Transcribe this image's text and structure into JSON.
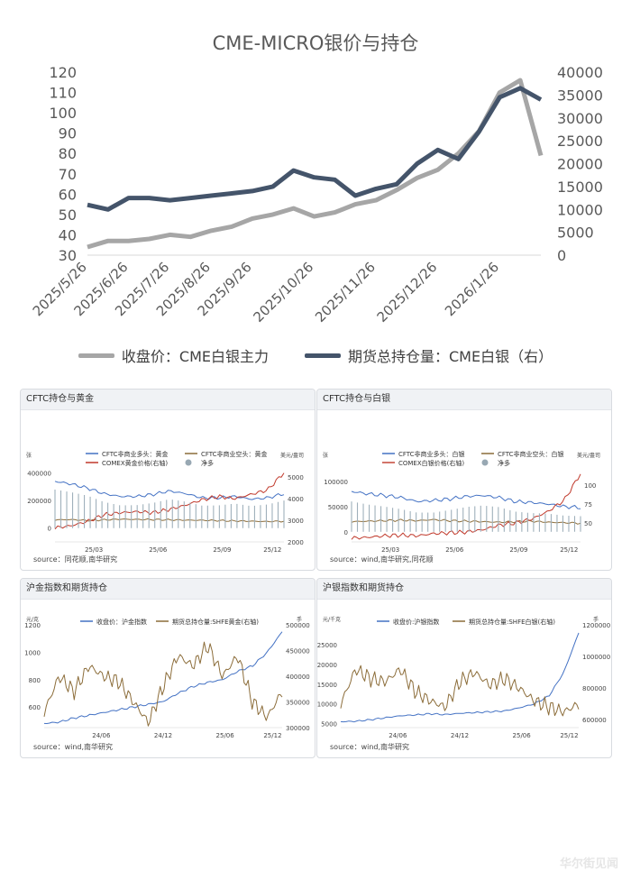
{
  "top_chart": {
    "title": "CME-MICRO银价与持仓",
    "legend": {
      "price": "收盘价：CME白银主力",
      "oi": "期货总持仓量：CME白银（右）"
    },
    "colors": {
      "price": "#a6a6a6",
      "oi": "#44546a"
    }
  },
  "panels": {
    "p1": {
      "title": "CFTC持仓与黄金",
      "source": "source：同花顺,南华研究",
      "unit_left": "张",
      "unit_right": "美元/盎司",
      "legend": {
        "long": "CFTC非商业多头：黄金",
        "short": "CFTC非商业空头：黄金",
        "price": "COMEX黄金价格(右轴)",
        "net": "净多"
      }
    },
    "p2": {
      "title": "CFTC持仓与白银",
      "source": "source：wind,南华研究,同花顺",
      "unit_left": "张",
      "unit_right": "美元/盎司",
      "legend": {
        "long": "CFTC非商业多头：白银",
        "short": "CFTC非商业空头：白银",
        "price": "COMEX白银价格(右轴)",
        "net": "净多"
      }
    },
    "p3": {
      "title": "沪金指数和期货持仓",
      "source": "source：wind,南华研究",
      "unit_left": "元/克",
      "unit_right": "手",
      "legend": {
        "price": "收盘价：沪金指数",
        "oi": "期货总持仓量:SHFE黄金(右轴)"
      }
    },
    "p4": {
      "title": "沪银指数和期货持仓",
      "source": "source：wind,南华研究",
      "unit_left": "元/千克",
      "unit_right": "手",
      "legend": {
        "price": "收盘价:沪银指数",
        "oi": "期货总持仓量:SHFE白银(右轴)"
      }
    }
  },
  "watermark": "华尔街见闻",
  "chart_data": [
    {
      "type": "line",
      "title": "CME-MICRO银价与持仓",
      "x": [
        "2025/5/26",
        "2025/6/10",
        "2025/6/26",
        "2025/7/10",
        "2025/7/26",
        "2025/8/10",
        "2025/8/26",
        "2025/9/10",
        "2025/9/26",
        "2025/10/5",
        "2025/10/14",
        "2025/10/26",
        "2025/11/10",
        "2025/11/20",
        "2025/11/26",
        "2025/12/5",
        "2025/12/15",
        "2025/12/26",
        "2026/1/5",
        "2026/1/15",
        "2026/1/26",
        "2026/1/29",
        "2026/1/30"
      ],
      "xticks": [
        "2025/5/26",
        "2025/6/26",
        "2025/7/26",
        "2025/8/26",
        "2025/9/26",
        "2025/10/26",
        "2025/11/26",
        "2025/12/26",
        "2026/1/26"
      ],
      "ylim": [
        30,
        120
      ],
      "ylim_right": [
        0,
        40000
      ],
      "series": [
        {
          "name": "收盘价：CME白银主力",
          "axis": "left",
          "values": [
            34,
            37,
            37,
            38,
            40,
            39,
            42,
            44,
            48,
            50,
            53,
            49,
            51,
            55,
            57,
            62,
            68,
            72,
            80,
            91,
            110,
            116,
            79
          ]
        },
        {
          "name": "期货总持仓量：CME白银（右）",
          "axis": "right",
          "values": [
            11000,
            10000,
            12500,
            12500,
            12000,
            12500,
            13000,
            13500,
            14000,
            15000,
            18500,
            17000,
            16500,
            13000,
            14500,
            15500,
            20000,
            23000,
            21000,
            27000,
            34500,
            36500,
            34000
          ]
        }
      ]
    },
    {
      "type": "line",
      "title": "CFTC持仓与黄金",
      "xticks": [
        "25/03",
        "25/06",
        "25/09",
        "25/12"
      ],
      "ylim": [
        -100000,
        450000
      ],
      "ylim_right": [
        2000,
        5500
      ],
      "series": [
        {
          "name": "CFTC非商业多头：黄金",
          "axis": "left",
          "values": [
            340000,
            320000,
            290000,
            250000,
            230000,
            230000,
            245000,
            270000,
            250000,
            220000,
            220000,
            230000,
            210000,
            220000,
            250000
          ]
        },
        {
          "name": "CFTC非商业空头：黄金",
          "axis": "left",
          "values": [
            60000,
            62000,
            55000,
            60000,
            65000,
            63000,
            62000,
            60000,
            58000,
            57000,
            55000,
            52000,
            50000,
            48000,
            50000
          ]
        },
        {
          "name": "COMEX黄金价格(右轴)",
          "axis": "right",
          "values": [
            2650,
            2750,
            2950,
            3250,
            3350,
            3400,
            3350,
            3500,
            3700,
            3950,
            4100,
            4000,
            4200,
            4400,
            5200
          ]
        },
        {
          "name": "净多",
          "axis": "left",
          "values": [
            280000,
            260000,
            235000,
            190000,
            165000,
            167000,
            183000,
            210000,
            192000,
            163000,
            165000,
            178000,
            160000,
            172000,
            200000
          ]
        }
      ]
    },
    {
      "type": "line",
      "title": "CFTC持仓与白银",
      "xticks": [
        "25/03",
        "25/06",
        "25/09",
        "25/12"
      ],
      "ylim": [
        -20000,
        130000
      ],
      "ylim_right": [
        25,
        125
      ],
      "series": [
        {
          "name": "CFTC非商业多头：白银",
          "axis": "left",
          "values": [
            80000,
            75000,
            72000,
            68000,
            60000,
            62000,
            65000,
            70000,
            72000,
            68000,
            60000,
            58000,
            55000,
            50000,
            48000
          ]
        },
        {
          "name": "CFTC非商业空头：白银",
          "axis": "left",
          "values": [
            20000,
            21000,
            22000,
            23000,
            22000,
            24000,
            22000,
            21000,
            20000,
            19000,
            20000,
            21000,
            19000,
            18000,
            17000
          ]
        },
        {
          "name": "COMEX白银价格(右轴)",
          "axis": "right",
          "values": [
            30,
            31,
            33,
            34,
            33,
            36,
            37,
            38,
            41,
            47,
            50,
            55,
            65,
            80,
            115
          ]
        },
        {
          "name": "净多",
          "axis": "left",
          "values": [
            60000,
            54000,
            50000,
            45000,
            38000,
            38000,
            43000,
            49000,
            52000,
            49000,
            40000,
            37000,
            36000,
            32000,
            31000
          ]
        }
      ]
    },
    {
      "type": "line",
      "title": "沪金指数和期货持仓",
      "xticks": [
        "24/06",
        "24/12",
        "25/06",
        "25/12"
      ],
      "ylim": [
        450,
        1200
      ],
      "ylim_right": [
        300000,
        500000
      ],
      "series": [
        {
          "name": "收盘价：沪金指数",
          "axis": "left",
          "values": [
            480,
            490,
            520,
            540,
            560,
            580,
            600,
            620,
            640,
            700,
            750,
            780,
            800,
            860,
            900,
            1000,
            1150
          ]
        },
        {
          "name": "期货总持仓量:SHFE黄金(右轴)",
          "axis": "right",
          "values": [
            330000,
            400000,
            370000,
            420000,
            400000,
            390000,
            350000,
            310000,
            380000,
            440000,
            420000,
            460000,
            400000,
            440000,
            350000,
            320000,
            370000
          ]
        }
      ]
    },
    {
      "type": "line",
      "title": "沪银指数和期货持仓",
      "xticks": [
        "24/06",
        "24/12",
        "25/06",
        "25/12"
      ],
      "ylim": [
        4000,
        30000
      ],
      "ylim_right": [
        550000,
        1200000
      ],
      "series": [
        {
          "name": "收盘价:沪银指数",
          "axis": "left",
          "values": [
            5500,
            5600,
            6000,
            6500,
            7000,
            7200,
            7500,
            7300,
            7600,
            7800,
            8000,
            8200,
            9000,
            10000,
            12000,
            18000,
            28000
          ]
        },
        {
          "name": "期货总持仓量:SHFE白银(右轴)",
          "axis": "right",
          "values": [
            700000,
            920000,
            860000,
            840000,
            920000,
            780000,
            720000,
            680000,
            840000,
            900000,
            820000,
            860000,
            800000,
            720000,
            680000,
            650000,
            700000
          ]
        }
      ]
    }
  ]
}
